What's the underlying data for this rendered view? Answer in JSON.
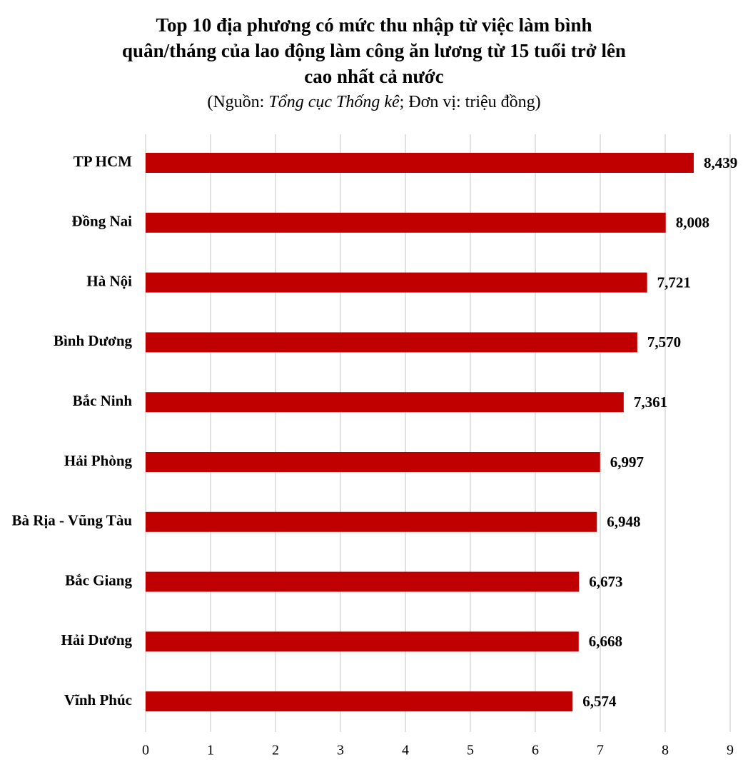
{
  "chart_data": {
    "type": "hbar",
    "title": [
      "Top 10 địa phương có mức thu nhập từ việc làm bình",
      "quân/tháng của lao động làm công ăn lương từ 15 tuổi trở lên",
      "cao nhất cả nước"
    ],
    "subtitle": [
      "(Nguồn: ",
      "Tổng cục Thống kê",
      "; Đơn vị: triệu đồng)"
    ],
    "categories": [
      "TP HCM",
      "Đồng Nai",
      "Hà Nội",
      "Bình Dương",
      "Bắc Ninh",
      "Hải Phòng",
      "Bà Rịa - Vũng Tàu",
      "Bắc Giang",
      "Hải Dương",
      "Vĩnh Phúc"
    ],
    "values": [
      8.439,
      8.008,
      7.721,
      7.57,
      7.361,
      6.997,
      6.948,
      6.673,
      6.668,
      6.574
    ],
    "value_labels": [
      "8,439",
      "8,008",
      "7,721",
      "7,570",
      "7,361",
      "6,997",
      "6,948",
      "6,673",
      "6,668",
      "6,574"
    ],
    "color": "#c00000",
    "xlim": [
      0,
      9
    ],
    "xticks": [
      0,
      1,
      2,
      3,
      4,
      5,
      6,
      7,
      8,
      9
    ],
    "grid": true
  }
}
